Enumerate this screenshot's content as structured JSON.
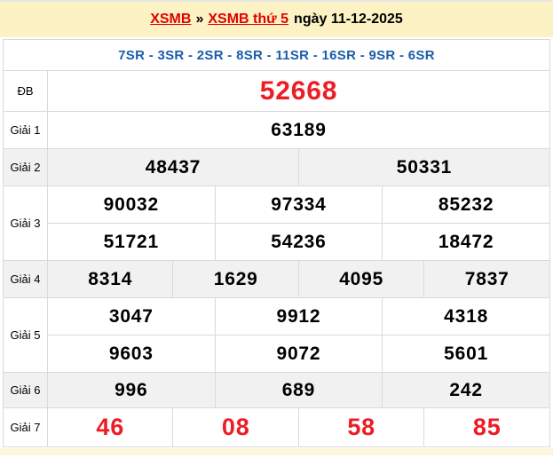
{
  "banner": {
    "home_link": "XSMB",
    "separator": "»",
    "page_link": "XSMB thứ 5",
    "date_text": "ngày 11-12-2025"
  },
  "loto_header": "7SR - 3SR - 2SR - 8SR - 11SR - 16SR - 9SR - 6SR",
  "colors": {
    "banner_bg": "#FCF2C4",
    "accent_red": "#EE1C25",
    "link_red": "#E10000",
    "header_blue": "#1A5DAC",
    "shaded_row_bg": "#F1F1F1",
    "table_border": "#C7C7CB"
  },
  "prizes": [
    {
      "key": "db",
      "label": "ĐB",
      "shaded": false,
      "red": true,
      "lines": [
        [
          "52668"
        ]
      ]
    },
    {
      "key": "g1",
      "label": "Giải 1",
      "shaded": false,
      "red": false,
      "lines": [
        [
          "63189"
        ]
      ]
    },
    {
      "key": "g2",
      "label": "Giải 2",
      "shaded": true,
      "red": false,
      "lines": [
        [
          "48437",
          "50331"
        ]
      ]
    },
    {
      "key": "g3",
      "label": "Giải 3",
      "shaded": false,
      "red": false,
      "lines": [
        [
          "90032",
          "97334",
          "85232"
        ],
        [
          "51721",
          "54236",
          "18472"
        ]
      ]
    },
    {
      "key": "g4",
      "label": "Giải 4",
      "shaded": true,
      "red": false,
      "lines": [
        [
          "8314",
          "1629",
          "4095",
          "7837"
        ]
      ]
    },
    {
      "key": "g5",
      "label": "Giải 5",
      "shaded": false,
      "red": false,
      "lines": [
        [
          "3047",
          "9912",
          "4318"
        ],
        [
          "9603",
          "9072",
          "5601"
        ]
      ]
    },
    {
      "key": "g6",
      "label": "Giải 6",
      "shaded": true,
      "red": false,
      "lines": [
        [
          "996",
          "689",
          "242"
        ]
      ]
    },
    {
      "key": "g7",
      "label": "Giải 7",
      "shaded": false,
      "red": true,
      "lines": [
        [
          "46",
          "08",
          "58",
          "85"
        ]
      ]
    }
  ]
}
